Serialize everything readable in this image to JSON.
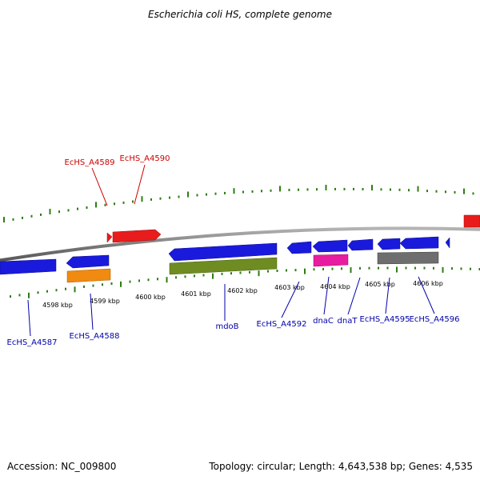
{
  "title": "Escherichia coli HS, complete genome",
  "footer": {
    "accession": "Accession: NC_009800",
    "summary": "Topology: circular; Length: 4,643,538 bp; Genes: 4,535"
  },
  "colors": {
    "backbone": "#888888",
    "ticks": "#2e7d12",
    "forward_label": "#cc0000",
    "reverse_label": "#0000aa",
    "blue": "#1a1adc",
    "red": "#e81c1c",
    "orange": "#f08a10",
    "olive": "#6f8c23",
    "magenta": "#e81ca0",
    "gray": "#6e6e6e"
  },
  "scale_labels": [
    "4598 kbp",
    "4599 kbp",
    "4600 kbp",
    "4601 kbp",
    "4602 kbp",
    "4603 kbp",
    "4604 kbp",
    "4605 kbp",
    "4606 kbp"
  ],
  "forward_labels": [
    "EcHS_A4589",
    "EcHS_A4590"
  ],
  "reverse_labels": [
    "EcHS_A4587",
    "EcHS_A4588",
    "mdoB",
    "EcHS_A4592",
    "dnaC",
    "dnaT",
    "EcHS_A4595",
    "EcHS_A4596"
  ],
  "features": [
    {
      "name": "gene-EcHS_A4587",
      "strand": "reverse",
      "track": "gene",
      "color": "blue"
    },
    {
      "name": "gene-EcHS_A4588",
      "strand": "reverse",
      "track": "gene",
      "color": "blue"
    },
    {
      "name": "cds-EcHS_A4588",
      "strand": "reverse",
      "track": "cds",
      "color": "orange"
    },
    {
      "name": "gene-EcHS_A4589",
      "strand": "forward",
      "track": "gene",
      "color": "red"
    },
    {
      "name": "gene-EcHS_A4590",
      "strand": "forward",
      "track": "gene",
      "color": "red"
    },
    {
      "name": "gene-mdoB",
      "strand": "reverse",
      "track": "gene",
      "color": "blue"
    },
    {
      "name": "cds-mdoB",
      "strand": "reverse",
      "track": "cds",
      "color": "olive"
    },
    {
      "name": "gene-EcHS_A4592",
      "strand": "reverse",
      "track": "gene",
      "color": "blue"
    },
    {
      "name": "gene-dnaC",
      "strand": "reverse",
      "track": "gene",
      "color": "blue"
    },
    {
      "name": "cds-dnaC",
      "strand": "reverse",
      "track": "cds",
      "color": "magenta"
    },
    {
      "name": "gene-dnaT",
      "strand": "reverse",
      "track": "gene",
      "color": "blue"
    },
    {
      "name": "gene-EcHS_A4595",
      "strand": "reverse",
      "track": "gene",
      "color": "blue"
    },
    {
      "name": "gene-EcHS_A4596",
      "strand": "reverse",
      "track": "gene",
      "color": "blue"
    },
    {
      "name": "cds-EcHS_A4595-EcHS_A4596",
      "strand": "reverse",
      "track": "cds",
      "color": "gray"
    },
    {
      "name": "gene-partial-right",
      "strand": "reverse",
      "track": "gene",
      "color": "blue"
    },
    {
      "name": "gene-forward-partial-right",
      "strand": "forward",
      "track": "gene",
      "color": "red"
    }
  ]
}
